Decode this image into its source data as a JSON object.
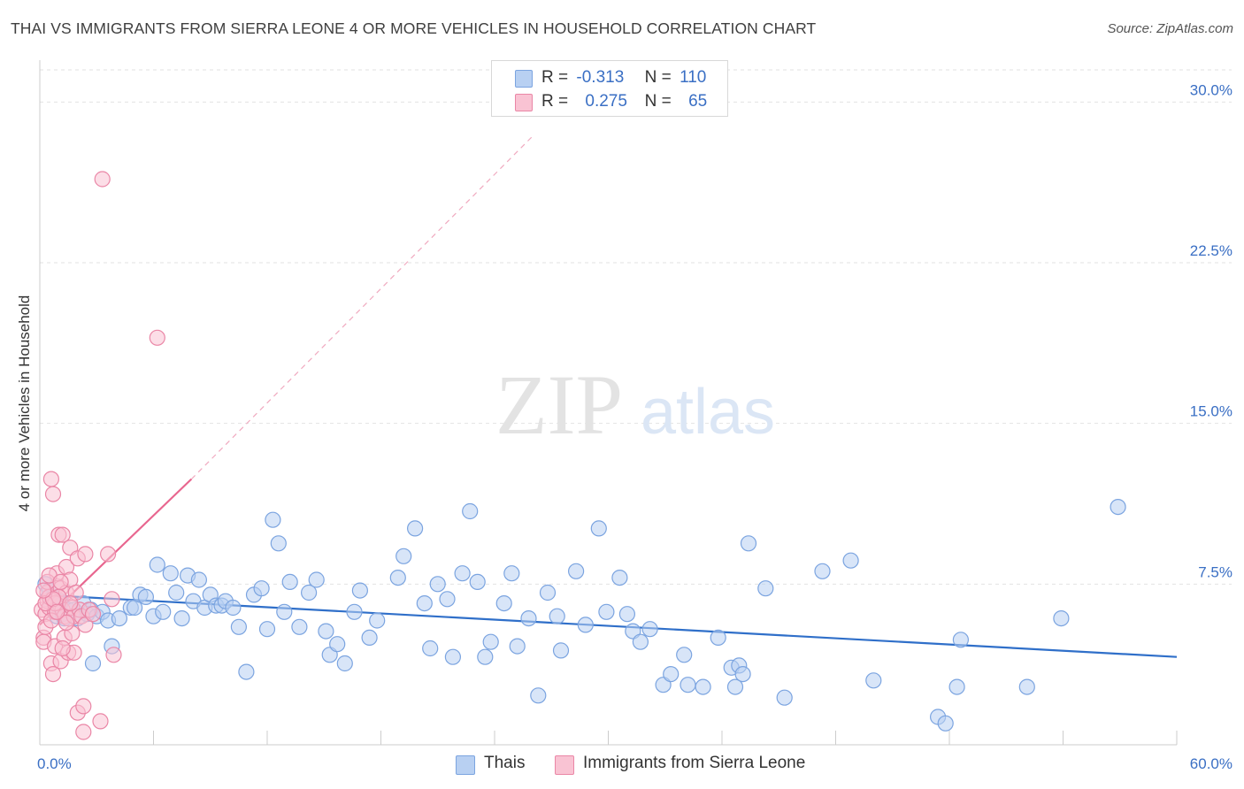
{
  "title": "THAI VS IMMIGRANTS FROM SIERRA LEONE 4 OR MORE VEHICLES IN HOUSEHOLD CORRELATION CHART",
  "source": "Source: ZipAtlas.com",
  "watermark": {
    "zip": "ZIP",
    "atlas": "atlas"
  },
  "legend": {
    "rows": [
      {
        "r_label": "R =",
        "r_value": "-0.313",
        "n_label": "N =",
        "n_value": "110",
        "color": "#b8d0f2",
        "border": "#7ba4e0"
      },
      {
        "r_label": "R =",
        "r_value": "0.275",
        "n_label": "N =",
        "n_value": "65",
        "color": "#f9c3d3",
        "border": "#ea86a6"
      }
    ]
  },
  "bottom_legend": [
    {
      "label": "Thais",
      "color": "#b8d0f2",
      "border": "#7ba4e0"
    },
    {
      "label": "Immigrants from Sierra Leone",
      "color": "#f9c3d3",
      "border": "#ea86a6"
    }
  ],
  "chart_data": {
    "type": "scatter",
    "title": "THAI VS IMMIGRANTS FROM SIERRA LEONE 4 OR MORE VEHICLES IN HOUSEHOLD CORRELATION CHART",
    "xlabel": "",
    "ylabel": "4 or more Vehicles in Household",
    "xlim": [
      0,
      60
    ],
    "ylim": [
      0,
      31.5
    ],
    "x_tick_labels": [
      "0.0%",
      "60.0%"
    ],
    "y_ticks": [
      7.5,
      15.0,
      22.5,
      30.0
    ],
    "y_tick_labels": [
      "7.5%",
      "15.0%",
      "22.5%",
      "30.0%"
    ],
    "grid": "horizontal-dashed",
    "legend_position": "top-center",
    "series": [
      {
        "name": "Thais",
        "color": "#7ba4e0",
        "fill": "#b8d0f2",
        "line_color": "#2f6fc9",
        "trend": {
          "x0": 0,
          "y0": 7.0,
          "x1": 60,
          "y1": 4.1
        },
        "points": [
          [
            0.3,
            7.5
          ],
          [
            0.5,
            7.2
          ],
          [
            0.6,
            6.6
          ],
          [
            0.7,
            6.9
          ],
          [
            0.8,
            6.3
          ],
          [
            0.9,
            6.0
          ],
          [
            1.0,
            6.5
          ],
          [
            1.2,
            6.1
          ],
          [
            1.3,
            5.9
          ],
          [
            1.5,
            6.3
          ],
          [
            1.8,
            6.3
          ],
          [
            2.0,
            5.9
          ],
          [
            2.3,
            6.6
          ],
          [
            2.5,
            6.1
          ],
          [
            2.7,
            6.3
          ],
          [
            3.0,
            6.0
          ],
          [
            3.3,
            6.2
          ],
          [
            3.6,
            5.8
          ],
          [
            3.8,
            4.6
          ],
          [
            4.2,
            5.9
          ],
          [
            4.8,
            6.4
          ],
          [
            5.0,
            6.4
          ],
          [
            5.3,
            7.0
          ],
          [
            5.6,
            6.9
          ],
          [
            6.0,
            6.0
          ],
          [
            6.2,
            8.4
          ],
          [
            6.5,
            6.2
          ],
          [
            6.9,
            8.0
          ],
          [
            7.2,
            7.1
          ],
          [
            7.5,
            5.9
          ],
          [
            7.8,
            7.9
          ],
          [
            8.1,
            6.7
          ],
          [
            8.4,
            7.7
          ],
          [
            8.7,
            6.4
          ],
          [
            9.0,
            7.0
          ],
          [
            9.3,
            6.5
          ],
          [
            9.6,
            6.5
          ],
          [
            9.8,
            6.7
          ],
          [
            10.2,
            6.4
          ],
          [
            10.5,
            5.5
          ],
          [
            10.9,
            3.4
          ],
          [
            11.3,
            7.0
          ],
          [
            11.7,
            7.3
          ],
          [
            12.0,
            5.4
          ],
          [
            12.3,
            10.5
          ],
          [
            12.6,
            9.4
          ],
          [
            12.9,
            6.2
          ],
          [
            13.2,
            7.6
          ],
          [
            13.7,
            5.5
          ],
          [
            14.2,
            7.1
          ],
          [
            14.6,
            7.7
          ],
          [
            15.1,
            5.3
          ],
          [
            15.3,
            4.2
          ],
          [
            15.7,
            4.7
          ],
          [
            16.1,
            3.8
          ],
          [
            16.6,
            6.2
          ],
          [
            16.9,
            7.2
          ],
          [
            17.4,
            5.0
          ],
          [
            17.8,
            5.8
          ],
          [
            18.9,
            7.8
          ],
          [
            19.2,
            8.8
          ],
          [
            19.8,
            10.1
          ],
          [
            20.3,
            6.6
          ],
          [
            20.6,
            4.5
          ],
          [
            21.0,
            7.5
          ],
          [
            21.5,
            6.8
          ],
          [
            21.8,
            4.1
          ],
          [
            22.3,
            8.0
          ],
          [
            22.7,
            10.9
          ],
          [
            23.1,
            7.6
          ],
          [
            23.5,
            4.1
          ],
          [
            23.8,
            4.8
          ],
          [
            24.5,
            6.6
          ],
          [
            24.9,
            8.0
          ],
          [
            25.2,
            4.6
          ],
          [
            25.8,
            5.9
          ],
          [
            26.3,
            2.3
          ],
          [
            26.8,
            7.1
          ],
          [
            27.3,
            6.0
          ],
          [
            27.5,
            4.4
          ],
          [
            28.3,
            8.1
          ],
          [
            28.8,
            5.6
          ],
          [
            29.5,
            10.1
          ],
          [
            29.9,
            6.2
          ],
          [
            30.6,
            7.8
          ],
          [
            31.0,
            6.1
          ],
          [
            31.3,
            5.3
          ],
          [
            31.7,
            4.8
          ],
          [
            32.2,
            5.4
          ],
          [
            32.9,
            2.8
          ],
          [
            33.3,
            3.3
          ],
          [
            34.0,
            4.2
          ],
          [
            34.2,
            2.8
          ],
          [
            35.0,
            2.7
          ],
          [
            35.8,
            5.0
          ],
          [
            36.5,
            3.6
          ],
          [
            36.7,
            2.7
          ],
          [
            36.9,
            3.7
          ],
          [
            37.1,
            3.3
          ],
          [
            37.4,
            9.4
          ],
          [
            38.3,
            7.3
          ],
          [
            39.3,
            2.2
          ],
          [
            41.3,
            8.1
          ],
          [
            42.8,
            8.6
          ],
          [
            44.0,
            3.0
          ],
          [
            47.4,
            1.3
          ],
          [
            47.8,
            1.0
          ],
          [
            48.4,
            2.7
          ],
          [
            48.6,
            4.9
          ],
          [
            53.9,
            5.9
          ],
          [
            56.9,
            11.1
          ],
          [
            2.8,
            3.8
          ],
          [
            1.1,
            6.7
          ],
          [
            52.1,
            2.7
          ]
        ]
      },
      {
        "name": "Immigrants from Sierra Leone",
        "color": "#ea86a6",
        "fill": "#f9c3d3",
        "line_color": "#e8668f",
        "trend": {
          "x0": 0,
          "y0": 5.6,
          "x1": 8,
          "y1": 12.4
        },
        "trend_extension": {
          "x0": 8,
          "y0": 12.4,
          "x1": 26,
          "y1": 28.4
        },
        "points": [
          [
            0.1,
            6.3
          ],
          [
            0.2,
            5.0
          ],
          [
            0.2,
            4.8
          ],
          [
            0.3,
            6.1
          ],
          [
            0.3,
            5.5
          ],
          [
            0.4,
            6.7
          ],
          [
            0.4,
            7.1
          ],
          [
            0.5,
            6.4
          ],
          [
            0.5,
            6.9
          ],
          [
            0.6,
            3.8
          ],
          [
            0.6,
            12.4
          ],
          [
            0.7,
            11.7
          ],
          [
            0.7,
            3.3
          ],
          [
            0.8,
            6.2
          ],
          [
            0.8,
            4.6
          ],
          [
            0.9,
            7.4
          ],
          [
            0.9,
            8.0
          ],
          [
            1.0,
            9.8
          ],
          [
            1.0,
            6.6
          ],
          [
            1.1,
            3.9
          ],
          [
            1.1,
            7.3
          ],
          [
            1.2,
            9.8
          ],
          [
            1.2,
            6.3
          ],
          [
            1.3,
            5.0
          ],
          [
            1.3,
            6.0
          ],
          [
            1.4,
            8.3
          ],
          [
            1.4,
            7.1
          ],
          [
            1.5,
            5.9
          ],
          [
            1.5,
            4.3
          ],
          [
            1.6,
            9.2
          ],
          [
            1.6,
            7.7
          ],
          [
            1.7,
            6.4
          ],
          [
            1.7,
            5.2
          ],
          [
            1.8,
            4.3
          ],
          [
            1.8,
            6.0
          ],
          [
            1.9,
            7.1
          ],
          [
            2.0,
            8.7
          ],
          [
            2.0,
            1.5
          ],
          [
            2.1,
            6.3
          ],
          [
            2.2,
            6.0
          ],
          [
            2.3,
            1.8
          ],
          [
            2.3,
            0.6
          ],
          [
            2.4,
            5.6
          ],
          [
            2.4,
            8.9
          ],
          [
            2.6,
            6.3
          ],
          [
            2.8,
            6.1
          ],
          [
            3.2,
            1.1
          ],
          [
            3.3,
            26.4
          ],
          [
            3.6,
            8.9
          ],
          [
            3.8,
            6.8
          ],
          [
            3.9,
            4.2
          ],
          [
            6.2,
            19.0
          ],
          [
            0.4,
            7.6
          ],
          [
            0.6,
            5.8
          ],
          [
            0.8,
            6.6
          ],
          [
            1.0,
            6.9
          ],
          [
            1.2,
            4.5
          ],
          [
            1.4,
            5.7
          ],
          [
            0.3,
            6.6
          ],
          [
            0.5,
            7.9
          ],
          [
            0.7,
            6.8
          ],
          [
            0.9,
            6.2
          ],
          [
            1.1,
            7.6
          ],
          [
            0.2,
            7.2
          ],
          [
            1.6,
            6.6
          ]
        ]
      }
    ]
  }
}
